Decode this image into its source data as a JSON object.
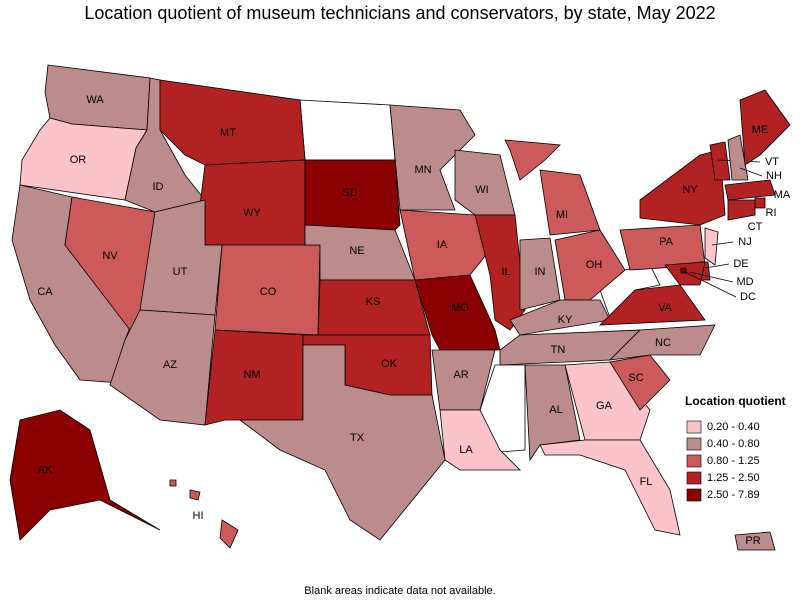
{
  "title": "Location quotient of museum technicians and conservators, by state, May 2022",
  "legend": {
    "title": "Location quotient",
    "items": [
      {
        "label": "0.20 - 0.40",
        "color": "#fbc4c9"
      },
      {
        "label": "0.40 - 0.80",
        "color": "#bc8b8b"
      },
      {
        "label": "0.80 - 1.25",
        "color": "#cd5a5a"
      },
      {
        "label": "1.25 - 2.50",
        "color": "#b22222"
      },
      {
        "label": "2.50 - 7.89",
        "color": "#8b0000"
      }
    ]
  },
  "states": [
    {
      "name": "WA",
      "class": 1
    },
    {
      "name": "OR",
      "class": 0
    },
    {
      "name": "CA",
      "class": 1
    },
    {
      "name": "NV",
      "class": 2
    },
    {
      "name": "ID",
      "class": 1
    },
    {
      "name": "MT",
      "class": 3
    },
    {
      "name": "WY",
      "class": 3
    },
    {
      "name": "UT",
      "class": 1
    },
    {
      "name": "AZ",
      "class": 1
    },
    {
      "name": "CO",
      "class": 2
    },
    {
      "name": "NM",
      "class": 3
    },
    {
      "name": "SD",
      "class": 4
    },
    {
      "name": "NE",
      "class": 1
    },
    {
      "name": "KS",
      "class": 3
    },
    {
      "name": "OK",
      "class": 3
    },
    {
      "name": "TX",
      "class": 1
    },
    {
      "name": "MN",
      "class": 1
    },
    {
      "name": "IA",
      "class": 2
    },
    {
      "name": "MO",
      "class": 4
    },
    {
      "name": "AR",
      "class": 1
    },
    {
      "name": "LA",
      "class": 0
    },
    {
      "name": "WI",
      "class": 1
    },
    {
      "name": "IL",
      "class": 3
    },
    {
      "name": "MI",
      "class": 2
    },
    {
      "name": "IN",
      "class": 1
    },
    {
      "name": "OH",
      "class": 2
    },
    {
      "name": "KY",
      "class": 1
    },
    {
      "name": "TN",
      "class": 1
    },
    {
      "name": "AL",
      "class": 1
    },
    {
      "name": "GA",
      "class": 0
    },
    {
      "name": "FL",
      "class": 0
    },
    {
      "name": "SC",
      "class": 2
    },
    {
      "name": "NC",
      "class": 1
    },
    {
      "name": "VA",
      "class": 3
    },
    {
      "name": "PA",
      "class": 2
    },
    {
      "name": "NY",
      "class": 3
    },
    {
      "name": "VT",
      "class": 3
    },
    {
      "name": "NH",
      "class": 1
    },
    {
      "name": "ME",
      "class": 3
    },
    {
      "name": "MA",
      "class": 3
    },
    {
      "name": "RI",
      "class": 3
    },
    {
      "name": "CT",
      "class": 3
    },
    {
      "name": "NJ",
      "class": 0
    },
    {
      "name": "DE",
      "class": 3
    },
    {
      "name": "MD",
      "class": 3
    },
    {
      "name": "DC",
      "class": 4
    },
    {
      "name": "AK",
      "class": 4
    },
    {
      "name": "HI",
      "class": 2
    },
    {
      "name": "PR",
      "class": 1
    }
  ],
  "note": "Blank areas indicate data not available."
}
